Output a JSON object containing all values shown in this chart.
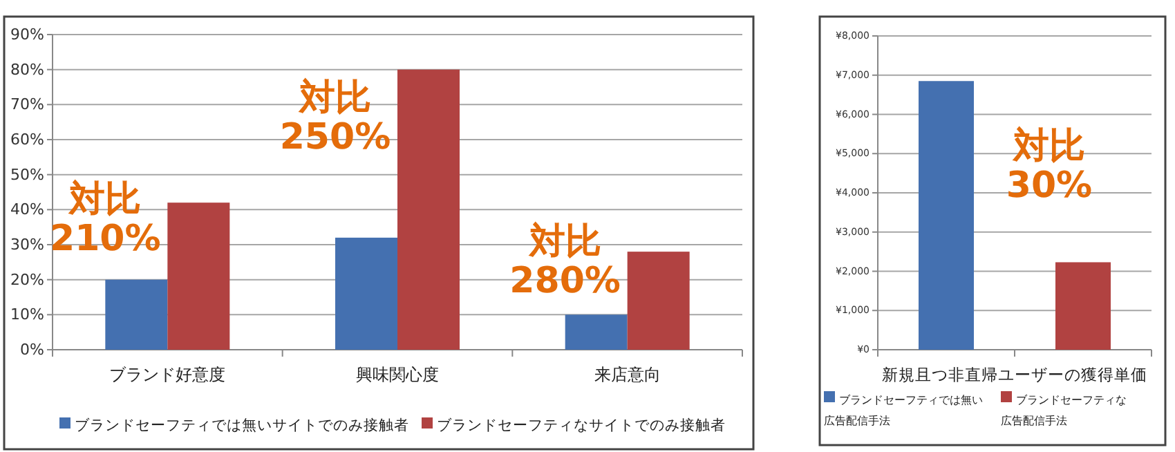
{
  "chart_data": [
    {
      "type": "bar",
      "categories": [
        "ブランド好意度",
        "興味関心度",
        "来店意向"
      ],
      "series": [
        {
          "name": "ブランドセーフティでは無いサイトでのみ接触者",
          "color": "#4470b0",
          "values": [
            20,
            32,
            10
          ]
        },
        {
          "name": "ブランドセーフティなサイトでのみ接触者",
          "color": "#b14241",
          "values": [
            42,
            80,
            28
          ]
        }
      ],
      "ylim": [
        0,
        90
      ],
      "yticks": [
        {
          "value": 0,
          "label": "0%"
        },
        {
          "value": 10,
          "label": "10%"
        },
        {
          "value": 20,
          "label": "20%"
        },
        {
          "value": 30,
          "label": "30%"
        },
        {
          "value": 40,
          "label": "40%"
        },
        {
          "value": 50,
          "label": "50%"
        },
        {
          "value": 60,
          "label": "60%"
        },
        {
          "value": 70,
          "label": "70%"
        },
        {
          "value": 80,
          "label": "80%"
        },
        {
          "value": 90,
          "label": "90%"
        }
      ],
      "grid": "y",
      "legend": "bottom",
      "annotations": [
        {
          "text": "対比\n210%",
          "x": "ブランド好意度",
          "y": 34
        },
        {
          "text": "対比\n250%",
          "x": "興味関心度",
          "y": 63
        },
        {
          "text": "対比\n280%",
          "x": "来店意向",
          "y": 22
        }
      ]
    },
    {
      "type": "bar",
      "categories": [
        null,
        null
      ],
      "xlabel": "新規且つ非直帰ユーザーの獲得単価",
      "series": [
        {
          "name": "ブランドセーフティでは無い広告配信手法",
          "color": "#4470b0",
          "values": [
            6850,
            null
          ]
        },
        {
          "name": "ブランドセーフティな広告配信手法",
          "color": "#b14241",
          "values": [
            null,
            2230
          ]
        }
      ],
      "ylim": [
        0,
        8000
      ],
      "yticks": [
        {
          "value": 0,
          "label": "¥0"
        },
        {
          "value": 1000,
          "label": "¥1,000"
        },
        {
          "value": 2000,
          "label": "¥2,000"
        },
        {
          "value": 3000,
          "label": "¥3,000"
        },
        {
          "value": 4000,
          "label": "¥4,000"
        },
        {
          "value": 5000,
          "label": "¥5,000"
        },
        {
          "value": 6000,
          "label": "¥6,000"
        },
        {
          "value": 7000,
          "label": "¥7,000"
        },
        {
          "value": 8000,
          "label": "¥8,000"
        }
      ],
      "grid": "y",
      "legend": "bottom",
      "annotations": [
        "対比\n30%"
      ]
    }
  ]
}
